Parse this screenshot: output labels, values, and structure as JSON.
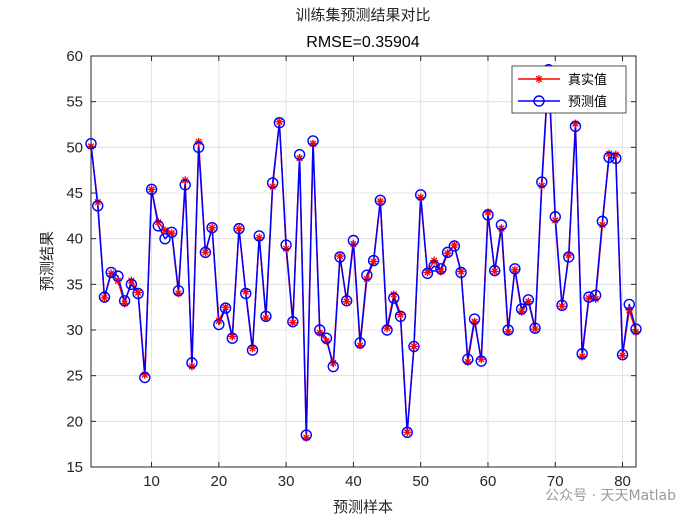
{
  "chart_data": {
    "type": "line",
    "title": "训练集预测结果对比",
    "subtitle": "RMSE=0.35904",
    "xlabel": "预测样本",
    "ylabel": "预测结果",
    "xlim": [
      1,
      82
    ],
    "ylim": [
      15,
      60
    ],
    "xticks": [
      10,
      20,
      30,
      40,
      50,
      60,
      70,
      80
    ],
    "yticks": [
      15,
      20,
      25,
      30,
      35,
      40,
      45,
      50,
      55,
      60
    ],
    "grid": true,
    "legend_position": "top-right",
    "x": [
      1,
      2,
      3,
      4,
      5,
      6,
      7,
      8,
      9,
      10,
      11,
      12,
      13,
      14,
      15,
      16,
      17,
      18,
      19,
      20,
      21,
      22,
      23,
      24,
      25,
      26,
      27,
      28,
      29,
      30,
      31,
      32,
      33,
      34,
      35,
      36,
      37,
      38,
      39,
      40,
      41,
      42,
      43,
      44,
      45,
      46,
      47,
      48,
      49,
      50,
      51,
      52,
      53,
      54,
      55,
      56,
      57,
      58,
      59,
      60,
      61,
      62,
      63,
      64,
      65,
      66,
      67,
      68,
      69,
      70,
      71,
      72,
      73,
      74,
      75,
      76,
      77,
      78,
      79,
      80,
      81,
      82
    ],
    "series": [
      {
        "name": "真实值",
        "color": "#ff0000",
        "marker": "asterisk",
        "values": [
          50.1,
          44.0,
          33.5,
          36.2,
          35.4,
          32.9,
          35.4,
          34.1,
          25.1,
          45.4,
          41.8,
          40.9,
          40.6,
          34.0,
          46.4,
          26.0,
          50.6,
          38.5,
          41.2,
          31.0,
          32.5,
          29.3,
          41.1,
          34.2,
          28.0,
          40.1,
          31.3,
          45.7,
          52.8,
          38.9,
          30.8,
          48.8,
          18.2,
          50.4,
          29.7,
          28.8,
          26.4,
          38.1,
          33.1,
          39.4,
          28.3,
          35.6,
          37.5,
          44.1,
          30.2,
          33.9,
          31.7,
          18.8,
          28.2,
          44.5,
          36.3,
          37.6,
          36.4,
          38.4,
          39.3,
          36.4,
          26.5,
          30.9,
          26.8,
          42.9,
          36.4,
          41.1,
          29.8,
          36.6,
          32.0,
          33.1,
          30.1,
          45.8,
          58.2,
          42.0,
          32.6,
          38.2,
          52.6,
          27.1,
          33.5,
          33.4,
          41.5,
          49.3,
          49.2,
          27.2,
          32.2,
          29.8
        ]
      },
      {
        "name": "预测值",
        "color": "#0000ff",
        "marker": "circle",
        "values": [
          50.4,
          43.6,
          33.6,
          36.3,
          35.9,
          33.2,
          35.0,
          34.0,
          24.8,
          45.4,
          41.4,
          40.0,
          40.7,
          34.3,
          45.9,
          26.4,
          50.0,
          38.5,
          41.2,
          30.6,
          32.4,
          29.1,
          41.1,
          34.0,
          27.8,
          40.3,
          31.5,
          46.1,
          52.7,
          39.3,
          30.9,
          49.2,
          18.5,
          50.7,
          30.0,
          29.1,
          26.0,
          38.0,
          33.2,
          39.8,
          28.6,
          36.0,
          37.6,
          44.2,
          30.0,
          33.5,
          31.5,
          18.8,
          28.2,
          44.8,
          36.2,
          37.0,
          36.7,
          38.5,
          39.2,
          36.3,
          26.8,
          31.2,
          26.6,
          42.6,
          36.5,
          41.5,
          30.0,
          36.7,
          32.3,
          33.3,
          30.2,
          46.2,
          58.5,
          42.4,
          32.7,
          38.0,
          52.3,
          27.4,
          33.6,
          33.8,
          41.9,
          48.9,
          48.8,
          27.3,
          32.8,
          30.1
        ]
      }
    ]
  },
  "watermark": "公众号 · 天天Matlab"
}
